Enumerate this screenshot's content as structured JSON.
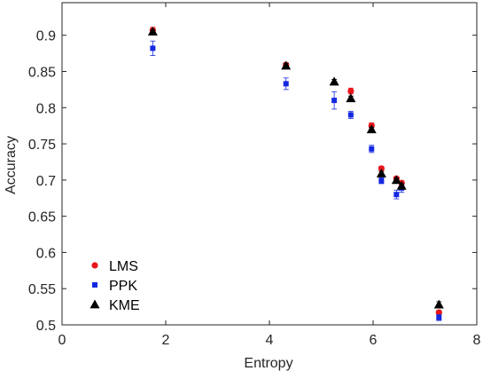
{
  "chart_data": {
    "type": "scatter",
    "xlabel": "Entropy",
    "ylabel": "Accuracy",
    "xlim": [
      0,
      8
    ],
    "ylim": [
      0.5,
      0.945
    ],
    "xticks": [
      0,
      2,
      4,
      6,
      8
    ],
    "xtick_labels": [
      "0",
      "2",
      "4",
      "6",
      "8"
    ],
    "yticks": [
      0.5,
      0.55,
      0.6,
      0.65,
      0.7,
      0.75,
      0.8,
      0.85,
      0.9
    ],
    "ytick_labels": [
      "0.5",
      "0.55",
      "0.6",
      "0.65",
      "0.7",
      "0.75",
      "0.8",
      "0.85",
      "0.9"
    ],
    "grid": false,
    "legend_position": "bottom-left",
    "series": [
      {
        "name": "LMS",
        "marker": "circle",
        "color": "#e8161b",
        "points": [
          {
            "x": 1.75,
            "y": 0.907,
            "err": 0.004
          },
          {
            "x": 4.32,
            "y": 0.859,
            "err": 0.003
          },
          {
            "x": 5.57,
            "y": 0.823,
            "err": 0.004
          },
          {
            "x": 5.97,
            "y": 0.775,
            "err": 0.004
          },
          {
            "x": 6.16,
            "y": 0.716,
            "err": 0.003
          },
          {
            "x": 6.45,
            "y": 0.702,
            "err": 0.003
          },
          {
            "x": 6.55,
            "y": 0.696,
            "err": 0.003
          },
          {
            "x": 7.27,
            "y": 0.517,
            "err": 0.003
          }
        ]
      },
      {
        "name": "PPK",
        "marker": "square",
        "color": "#1428e0",
        "points": [
          {
            "x": 1.75,
            "y": 0.882,
            "err": 0.01
          },
          {
            "x": 4.32,
            "y": 0.833,
            "err": 0.008
          },
          {
            "x": 5.25,
            "y": 0.81,
            "err": 0.012
          },
          {
            "x": 5.57,
            "y": 0.79,
            "err": 0.005
          },
          {
            "x": 5.97,
            "y": 0.743,
            "err": 0.005
          },
          {
            "x": 6.16,
            "y": 0.699,
            "err": 0.004
          },
          {
            "x": 6.45,
            "y": 0.68,
            "err": 0.006
          },
          {
            "x": 6.55,
            "y": 0.689,
            "err": 0.006
          },
          {
            "x": 7.27,
            "y": 0.51,
            "err": 0.004
          }
        ]
      },
      {
        "name": "KME",
        "marker": "triangle",
        "color": "#000000",
        "points": [
          {
            "x": 1.75,
            "y": 0.905,
            "err": 0.003
          },
          {
            "x": 4.32,
            "y": 0.858,
            "err": 0.003
          },
          {
            "x": 5.25,
            "y": 0.836,
            "err": 0.003
          },
          {
            "x": 5.57,
            "y": 0.813,
            "err": 0.003
          },
          {
            "x": 5.97,
            "y": 0.77,
            "err": 0.003
          },
          {
            "x": 6.16,
            "y": 0.709,
            "err": 0.003
          },
          {
            "x": 6.45,
            "y": 0.7,
            "err": 0.003
          },
          {
            "x": 6.55,
            "y": 0.692,
            "err": 0.003
          },
          {
            "x": 7.27,
            "y": 0.528,
            "err": 0.004
          }
        ]
      }
    ]
  }
}
